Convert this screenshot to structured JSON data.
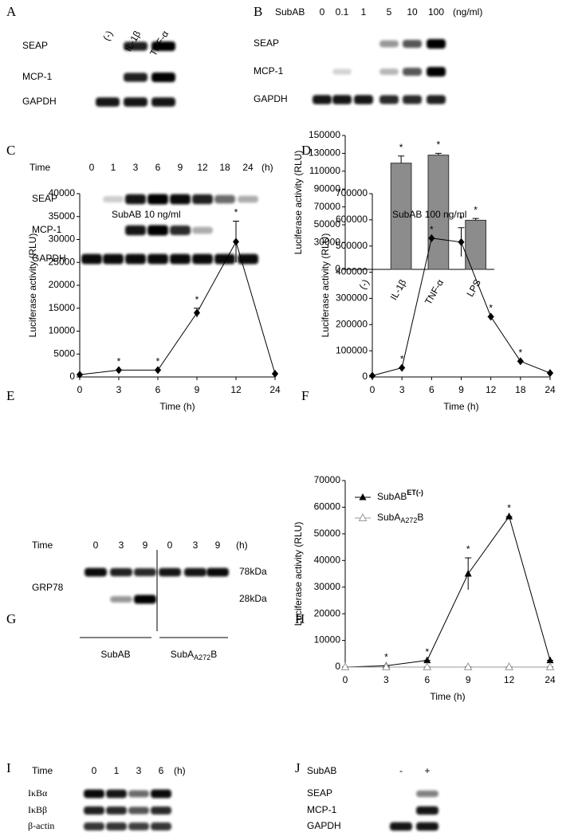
{
  "blots": {
    "A": {
      "label": "A",
      "lanes": [
        "(-)",
        "IL-1β",
        "TNF-α"
      ],
      "rows": [
        "SEAP",
        "MCP-1",
        "GAPDH"
      ]
    },
    "B": {
      "label": "B",
      "header": "SubAB",
      "lanes": [
        "0",
        "0.1",
        "1",
        "5",
        "10",
        "100"
      ],
      "unit": "(ng/ml)",
      "rows": [
        "SEAP",
        "MCP-1",
        "GAPDH"
      ]
    },
    "C": {
      "label": "C",
      "header": "Time",
      "lanes": [
        "0",
        "1",
        "3",
        "6",
        "9",
        "12",
        "18",
        "24"
      ],
      "unit": "(h)",
      "rows": [
        "SEAP",
        "MCP-1",
        "GAPDH"
      ]
    },
    "G": {
      "label": "G",
      "header": "Time",
      "lanes": [
        "0",
        "3",
        "9",
        "0",
        "3",
        "9"
      ],
      "unit": "(h)",
      "rows": [
        "GRP78"
      ],
      "sizes": [
        "78kDa",
        "28kDa"
      ],
      "groups": [
        {
          "text": "SubAB"
        },
        {
          "text": "SubA",
          "sub": "A272",
          "end": "B"
        }
      ]
    },
    "I": {
      "label": "I",
      "header": "Time",
      "lanes": [
        "0",
        "1",
        "3",
        "6"
      ],
      "unit": "(h)",
      "rows": [
        "IκBα",
        "IκBβ",
        "β-actin"
      ]
    },
    "J": {
      "label": "J",
      "header": "SubAB",
      "lanes": [
        "-",
        "+"
      ],
      "rows": [
        "SEAP",
        "MCP-1",
        "GAPDH"
      ]
    }
  },
  "chart_data": [
    {
      "type": "bar",
      "panel": "D",
      "ylabel": "Luciferase activity (RLU)",
      "categories": [
        "(-)",
        "IL-1β",
        "TNF-α",
        "LPS"
      ],
      "values": [
        0,
        119000,
        128000,
        55000
      ],
      "errors": [
        0,
        8000,
        2000,
        2000
      ],
      "star_labels": [
        null,
        "*",
        "*",
        "*"
      ],
      "color": "#8c8c8c",
      "ylim": [
        0,
        150000
      ],
      "yticks": [
        0,
        30000,
        50000,
        70000,
        90000,
        110000,
        130000,
        150000
      ]
    },
    {
      "type": "line",
      "panel": "E",
      "annotation": "SubAB 10 ng/ml",
      "ylabel": "Luciferase activity (RLU)",
      "xlabel": "Time (h)",
      "categories": [
        "0",
        "3",
        "6",
        "9",
        "12",
        "24"
      ],
      "values": [
        500,
        1500,
        1500,
        14000,
        29500,
        700
      ],
      "errors": [
        0,
        0,
        0,
        1000,
        4500,
        0
      ],
      "star_labels": [
        null,
        "*",
        "*",
        "*",
        "*",
        null
      ],
      "color": "#000000",
      "marker": "diamond",
      "ylim": [
        0,
        40000
      ],
      "yticks": [
        0,
        5000,
        10000,
        15000,
        20000,
        25000,
        30000,
        35000,
        40000
      ]
    },
    {
      "type": "line",
      "panel": "F",
      "annotation": "SubAB 100 ng/ml",
      "ylabel": "Luciferase activity (RLU)",
      "xlabel": "Time (h)",
      "categories": [
        "0",
        "3",
        "6",
        "9",
        "12",
        "18",
        "24"
      ],
      "values": [
        5000,
        35000,
        530000,
        515000,
        230000,
        60000,
        15000
      ],
      "errors": [
        0,
        0,
        0,
        55000,
        0,
        0,
        0
      ],
      "star_labels": [
        null,
        "*",
        "*",
        "*",
        "*",
        "*",
        null
      ],
      "color": "#000000",
      "marker": "diamond",
      "ylim": [
        0,
        700000
      ],
      "yticks": [
        0,
        100000,
        200000,
        300000,
        400000,
        500000,
        600000,
        700000
      ]
    },
    {
      "type": "line",
      "panel": "H",
      "ylabel": "Luciferase activity (RLU)",
      "xlabel": "Time (h)",
      "categories": [
        "0",
        "3",
        "6",
        "9",
        "12",
        "24"
      ],
      "series": [
        {
          "name": "SubAB",
          "name_sup": "ET(-)",
          "color": "#000000",
          "marker": "triangle",
          "values": [
            0,
            500,
            2500,
            35000,
            56500,
            2500
          ],
          "errors": [
            0,
            0,
            0,
            6000,
            0,
            0
          ]
        },
        {
          "name": "SubA",
          "name_sub": "A272",
          "name_end": "B",
          "color": "#999999",
          "marker": "open-triangle",
          "values": [
            0,
            0,
            0,
            0,
            0,
            0
          ],
          "errors": [
            0,
            0,
            0,
            0,
            0,
            0
          ]
        }
      ],
      "star_labels": [
        null,
        "*",
        "*",
        "*",
        "*",
        null
      ],
      "ylim": [
        0,
        70000
      ],
      "yticks": [
        0,
        10000,
        20000,
        30000,
        40000,
        50000,
        60000,
        70000
      ]
    }
  ]
}
